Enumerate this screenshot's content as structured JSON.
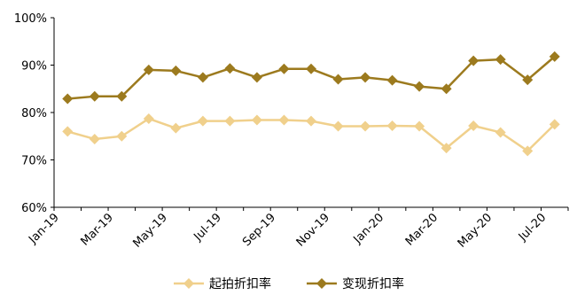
{
  "chart_data": {
    "type": "line",
    "x": [
      "Jan-19",
      "Feb-19",
      "Mar-19",
      "Apr-19",
      "May-19",
      "Jun-19",
      "Jul-19",
      "Aug-19",
      "Sep-19",
      "Oct-19",
      "Nov-19",
      "Dec-19",
      "Jan-20",
      "Feb-20",
      "Mar-20",
      "Apr-20",
      "May-20",
      "Jun-20",
      "Jul-20"
    ],
    "x_tick_labels": [
      "Jan-19",
      "Mar-19",
      "May-19",
      "Jul-19",
      "Sep-19",
      "Nov-19",
      "Jan-20",
      "Mar-20",
      "May-20",
      "Jul-20"
    ],
    "y_tick_labels": [
      "60%",
      "70%",
      "80%",
      "90%",
      "100%"
    ],
    "ylim": [
      60,
      100
    ],
    "y_ticks": [
      60,
      70,
      80,
      90,
      100
    ],
    "grid": false,
    "legend_position": "bottom",
    "series": [
      {
        "name": "起拍折扣率",
        "color": "#f0d08c",
        "values": [
          76.0,
          74.4,
          75.0,
          78.7,
          76.7,
          78.2,
          78.2,
          78.4,
          78.4,
          78.2,
          77.1,
          77.1,
          77.2,
          77.1,
          72.5,
          77.2,
          75.8,
          71.9,
          77.5
        ]
      },
      {
        "name": "变现折扣率",
        "color": "#9c7a1e",
        "values": [
          82.9,
          83.4,
          83.4,
          89.0,
          88.8,
          87.4,
          89.3,
          87.4,
          89.2,
          89.2,
          87.0,
          87.4,
          86.8,
          85.5,
          85.0,
          90.9,
          91.2,
          86.9,
          91.8
        ]
      }
    ]
  }
}
